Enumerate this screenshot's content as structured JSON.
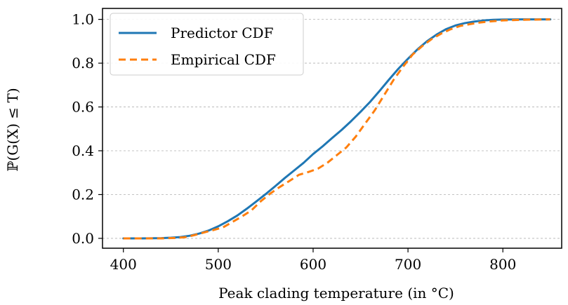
{
  "chart_data": {
    "type": "line",
    "xlabel": "Peak clading temperature (in °C)",
    "ylabel": "ℙ(G(X) ≤ T)",
    "xlim": [
      378,
      862
    ],
    "ylim": [
      -0.045,
      1.05
    ],
    "xticks": [
      400,
      500,
      600,
      700,
      800
    ],
    "yticks": [
      0.0,
      0.2,
      0.4,
      0.6,
      0.8,
      1.0
    ],
    "xtick_labels": [
      "400",
      "500",
      "600",
      "700",
      "800"
    ],
    "ytick_labels": [
      "0.0",
      "0.2",
      "0.4",
      "0.6",
      "0.8",
      "1.0"
    ],
    "grid": "horizontal dashed",
    "legend_position": "top-left",
    "series": [
      {
        "name": "Predictor CDF",
        "color": "#1f77b4",
        "style": "solid",
        "x": [
          400,
          420,
          440,
          450,
          460,
          470,
          480,
          490,
          500,
          510,
          520,
          530,
          540,
          550,
          560,
          570,
          580,
          590,
          600,
          610,
          620,
          630,
          640,
          650,
          660,
          670,
          680,
          690,
          700,
          710,
          720,
          730,
          740,
          750,
          760,
          770,
          780,
          790,
          800,
          820,
          850
        ],
        "y": [
          0.0,
          0.0,
          0.001,
          0.003,
          0.006,
          0.012,
          0.022,
          0.036,
          0.055,
          0.078,
          0.104,
          0.135,
          0.168,
          0.202,
          0.238,
          0.275,
          0.31,
          0.345,
          0.385,
          0.42,
          0.458,
          0.495,
          0.535,
          0.578,
          0.623,
          0.673,
          0.725,
          0.775,
          0.82,
          0.863,
          0.9,
          0.93,
          0.955,
          0.972,
          0.983,
          0.99,
          0.995,
          0.998,
          0.999,
          1.0,
          1.0
        ]
      },
      {
        "name": "Empirical CDF",
        "color": "#ff7f0e",
        "style": "dashed",
        "x": [
          400,
          420,
          440,
          455,
          465,
          475,
          485,
          495,
          505,
          515,
          525,
          535,
          545,
          555,
          565,
          575,
          585,
          595,
          605,
          615,
          625,
          635,
          645,
          655,
          665,
          675,
          685,
          695,
          705,
          715,
          725,
          735,
          745,
          755,
          765,
          775,
          785,
          800,
          820,
          850
        ],
        "y": [
          0.0,
          0.0,
          0.0,
          0.002,
          0.005,
          0.015,
          0.027,
          0.038,
          0.05,
          0.075,
          0.1,
          0.128,
          0.17,
          0.205,
          0.235,
          0.262,
          0.29,
          0.303,
          0.318,
          0.345,
          0.38,
          0.415,
          0.465,
          0.525,
          0.585,
          0.655,
          0.725,
          0.785,
          0.84,
          0.878,
          0.91,
          0.935,
          0.955,
          0.97,
          0.978,
          0.985,
          0.99,
          0.995,
          0.998,
          1.0
        ]
      }
    ]
  }
}
